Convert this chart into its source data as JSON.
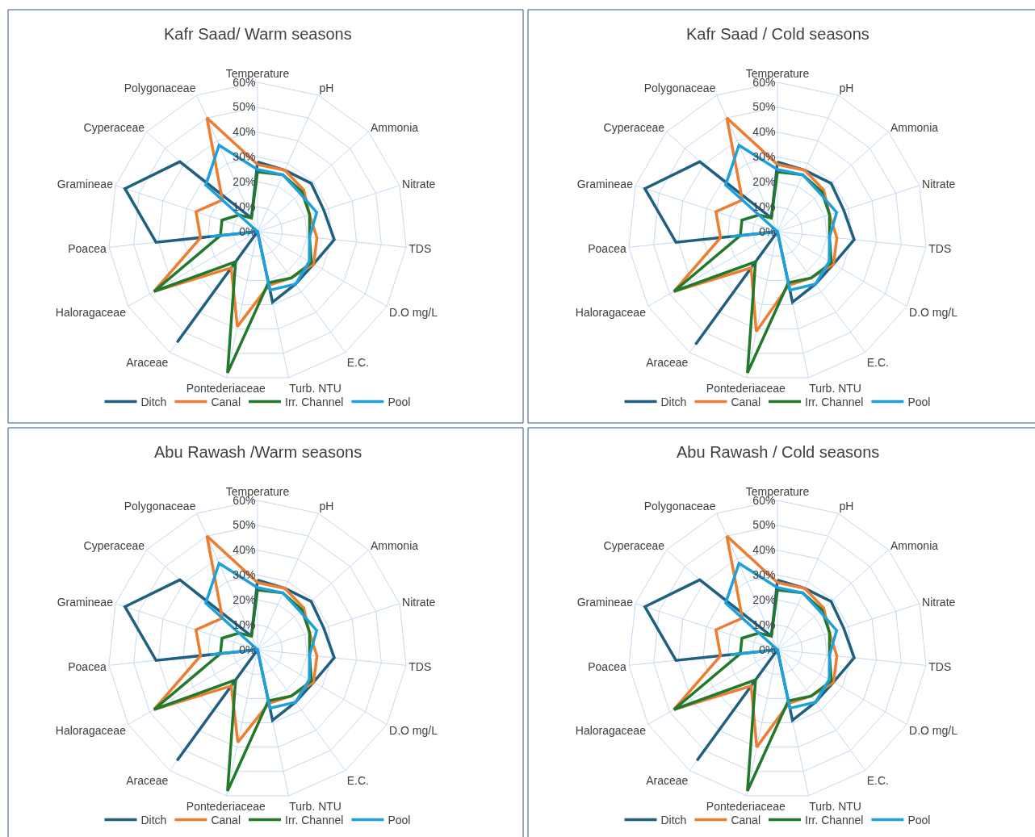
{
  "chart_data": [
    {
      "type": "radar",
      "title": "Kafr Saad/ Warm seasons",
      "categories": [
        "Temperature",
        "pH",
        "Ammonia",
        "Nitrate",
        "TDS",
        "D.O mg/L",
        "E.C.",
        "Turb. NTU",
        "Pontederiaceae",
        "Araceae",
        "Haloragaceae",
        "Poacea",
        "Gramineae",
        "Cyperaceae",
        "Polygonaceae"
      ],
      "ylim": [
        0,
        60
      ],
      "yticks": [
        {
          "value": 0,
          "label": "0%"
        },
        {
          "value": 10,
          "label": "10%"
        },
        {
          "value": 20,
          "label": "20%"
        },
        {
          "value": 30,
          "label": "30%"
        },
        {
          "value": 40,
          "label": "40%"
        },
        {
          "value": 50,
          "label": "50%"
        },
        {
          "value": 60,
          "label": "60%"
        }
      ],
      "grid": true,
      "legend": "bottom",
      "marker": "none",
      "series": [
        {
          "name": "Ditch",
          "color": "#1f5f82",
          "values": [
            28,
            27,
            29,
            28,
            31,
            26,
            26,
            29,
            0,
            55,
            0,
            41,
            56,
            42,
            6
          ]
        },
        {
          "name": "Canal",
          "color": "#ed7d31",
          "values": [
            27,
            27,
            25,
            22,
            24,
            26,
            23,
            22,
            39,
            18,
            48,
            23,
            26,
            19,
            50
          ]
        },
        {
          "name": "Irr. Channel",
          "color": "#217a2b",
          "values": [
            24,
            25,
            24,
            22,
            21,
            25,
            23,
            21,
            58,
            15,
            48,
            15,
            15,
            10,
            6
          ]
        },
        {
          "name": "Pool",
          "color": "#1ea0dc",
          "values": [
            25,
            25,
            23,
            25,
            21,
            24,
            26,
            24,
            0,
            0,
            0,
            19,
            0,
            28,
            38
          ]
        }
      ]
    },
    {
      "type": "radar",
      "title": "Kafr Saad / Cold seasons",
      "categories": [
        "Temperature",
        "pH",
        "Ammonia",
        "Nitrate",
        "TDS",
        "D.O mg/L",
        "E.C.",
        "Turb. NTU",
        "Pontederiaceae",
        "Araceae",
        "Haloragaceae",
        "Poacea",
        "Gramineae",
        "Cyperaceae",
        "Polygonaceae"
      ],
      "ylim": [
        0,
        60
      ],
      "yticks": [
        {
          "value": 0,
          "label": "0%"
        },
        {
          "value": 10,
          "label": "10%"
        },
        {
          "value": 20,
          "label": "20%"
        },
        {
          "value": 30,
          "label": "30%"
        },
        {
          "value": 40,
          "label": "40%"
        },
        {
          "value": 50,
          "label": "50%"
        },
        {
          "value": 60,
          "label": "60%"
        }
      ],
      "grid": true,
      "legend": "bottom",
      "marker": "none",
      "series": [
        {
          "name": "Ditch",
          "color": "#1f5f82",
          "values": [
            28,
            27,
            29,
            28,
            31,
            26,
            26,
            29,
            0,
            56,
            0,
            41,
            56,
            42,
            6
          ]
        },
        {
          "name": "Canal",
          "color": "#ed7d31",
          "values": [
            27,
            27,
            25,
            22,
            24,
            26,
            23,
            22,
            41,
            18,
            48,
            23,
            26,
            19,
            50
          ]
        },
        {
          "name": "Irr. Channel",
          "color": "#217a2b",
          "values": [
            24,
            25,
            24,
            22,
            21,
            25,
            23,
            21,
            58,
            15,
            48,
            15,
            15,
            10,
            6
          ]
        },
        {
          "name": "Pool",
          "color": "#1ea0dc",
          "values": [
            25,
            25,
            23,
            25,
            21,
            24,
            26,
            24,
            0,
            0,
            0,
            19,
            0,
            28,
            38
          ]
        }
      ]
    },
    {
      "type": "radar",
      "title": "Abu Rawash /Warm seasons",
      "categories": [
        "Temperature",
        "pH",
        "Ammonia",
        "Nitrate",
        "TDS",
        "D.O mg/L",
        "E.C.",
        "Turb. NTU",
        "Pontederiaceae",
        "Araceae",
        "Haloragaceae",
        "Poacea",
        "Gramineae",
        "Cyperaceae",
        "Polygonaceae"
      ],
      "ylim": [
        0,
        60
      ],
      "yticks": [
        {
          "value": 0,
          "label": "0%"
        },
        {
          "value": 10,
          "label": "10%"
        },
        {
          "value": 20,
          "label": "20%"
        },
        {
          "value": 30,
          "label": "30%"
        },
        {
          "value": 40,
          "label": "40%"
        },
        {
          "value": 50,
          "label": "50%"
        },
        {
          "value": 60,
          "label": "60%"
        }
      ],
      "grid": true,
      "legend": "bottom",
      "marker": "none",
      "series": [
        {
          "name": "Ditch",
          "color": "#1f5f82",
          "values": [
            28,
            27,
            29,
            28,
            31,
            26,
            26,
            29,
            0,
            55,
            0,
            41,
            56,
            42,
            6
          ]
        },
        {
          "name": "Canal",
          "color": "#ed7d31",
          "values": [
            27,
            27,
            25,
            22,
            24,
            26,
            23,
            22,
            38,
            18,
            48,
            23,
            26,
            19,
            50
          ]
        },
        {
          "name": "Irr. Channel",
          "color": "#217a2b",
          "values": [
            24,
            25,
            24,
            22,
            21,
            25,
            23,
            21,
            58,
            15,
            48,
            15,
            15,
            10,
            6
          ]
        },
        {
          "name": "Pool",
          "color": "#1ea0dc",
          "values": [
            25,
            25,
            23,
            25,
            21,
            24,
            26,
            24,
            0,
            0,
            0,
            19,
            0,
            28,
            38
          ]
        }
      ]
    },
    {
      "type": "radar",
      "title": "Abu Rawash / Cold seasons",
      "categories": [
        "Temperature",
        "pH",
        "Ammonia",
        "Nitrate",
        "TDS",
        "D.O mg/L",
        "E.C.",
        "Turb. NTU",
        "Pontederiaceae",
        "Araceae",
        "Haloragaceae",
        "Poacea",
        "Gramineae",
        "Cyperaceae",
        "Polygonaceae"
      ],
      "ylim": [
        0,
        60
      ],
      "yticks": [
        {
          "value": 0,
          "label": "0%"
        },
        {
          "value": 10,
          "label": "10%"
        },
        {
          "value": 20,
          "label": "20%"
        },
        {
          "value": 30,
          "label": "30%"
        },
        {
          "value": 40,
          "label": "40%"
        },
        {
          "value": 50,
          "label": "50%"
        },
        {
          "value": 60,
          "label": "60%"
        }
      ],
      "grid": true,
      "legend": "bottom",
      "marker": "none",
      "series": [
        {
          "name": "Ditch",
          "color": "#1f5f82",
          "values": [
            28,
            27,
            29,
            28,
            31,
            26,
            26,
            29,
            0,
            55,
            0,
            41,
            56,
            42,
            6
          ]
        },
        {
          "name": "Canal",
          "color": "#ed7d31",
          "values": [
            27,
            27,
            25,
            22,
            24,
            26,
            23,
            22,
            40,
            18,
            48,
            23,
            26,
            19,
            50
          ]
        },
        {
          "name": "Irr. Channel",
          "color": "#217a2b",
          "values": [
            24,
            25,
            24,
            22,
            21,
            25,
            23,
            21,
            58,
            15,
            48,
            15,
            15,
            10,
            6
          ]
        },
        {
          "name": "Pool",
          "color": "#1ea0dc",
          "values": [
            25,
            25,
            23,
            25,
            21,
            24,
            26,
            24,
            0,
            0,
            0,
            19,
            0,
            28,
            38
          ]
        }
      ]
    }
  ]
}
